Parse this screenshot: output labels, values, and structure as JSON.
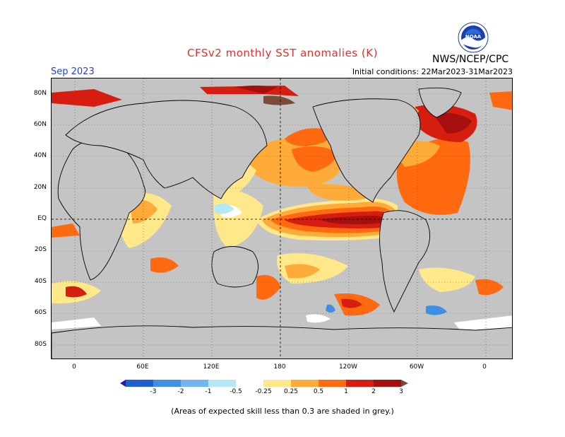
{
  "title": "CFSv2 monthly SST anomalies (K)",
  "agency": "NWS/NCEP/CPC",
  "logo_text": "NOAA",
  "forecast_month": "Sep 2023",
  "initial_conditions": "Initial conditions: 22Mar2023-31Mar2023",
  "footnote": "(Areas of expected skill less than 0.3 are shaded in grey.)",
  "map": {
    "lat_labels": [
      "80N",
      "60N",
      "40N",
      "20N",
      "EQ",
      "20S",
      "40S",
      "60S",
      "80S"
    ],
    "lon_labels": [
      "0",
      "60E",
      "120E",
      "180",
      "120W",
      "60W",
      "0"
    ]
  },
  "colorbar": {
    "labels": [
      "-3",
      "-2",
      "-1",
      "-0.5",
      "-0.25",
      "0.25",
      "0.5",
      "1",
      "2",
      "3"
    ],
    "colors": [
      "#2a1a9c",
      "#1f5fcf",
      "#3f8fe6",
      "#72b5f0",
      "#b4e8f6",
      "#ffffff",
      "#ffe88a",
      "#ffab3a",
      "#ff6a10",
      "#d51e10",
      "#a50f0f",
      "#7a4a3a"
    ]
  },
  "colors": {
    "land": "#c4c4c4",
    "skill_mask": "#c4c4c4",
    "title": "#e03030",
    "month": "#2a3fd0"
  }
}
